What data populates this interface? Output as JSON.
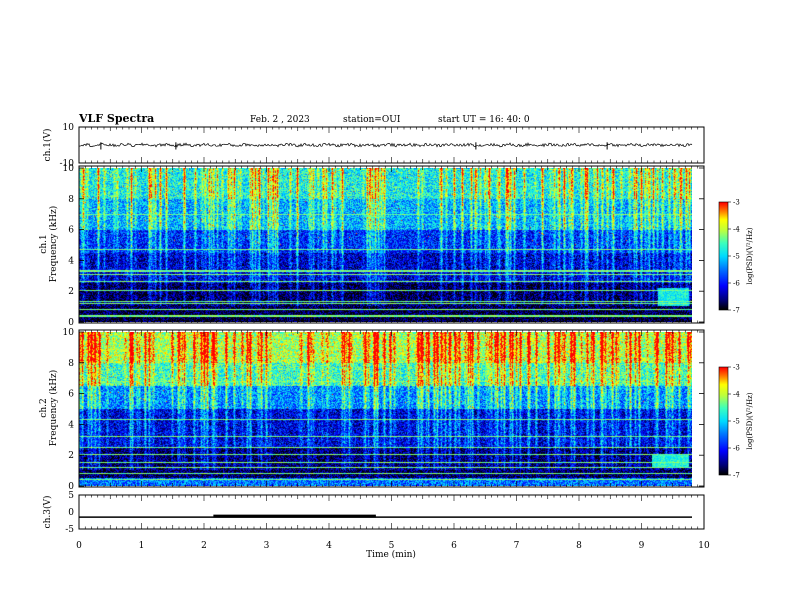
{
  "header": {
    "title": "VLF Spectra",
    "date": "Feb. 2 , 2023",
    "station": "station=OUI",
    "start": "start  UT =   16: 40: 0"
  },
  "colors": {
    "background": "#ffffff",
    "colormap": [
      "#000000",
      "#00007f",
      "#0000ff",
      "#0040ff",
      "#00c0ff",
      "#40ffbf",
      "#bfff40",
      "#ffff00",
      "#ff8000",
      "#ff0000",
      "#ffffff"
    ]
  },
  "chart_data": [
    {
      "type": "line",
      "panel": "ch1-waveform",
      "ylabel": "ch.1(V)",
      "yticks": [
        "10",
        "-10"
      ],
      "ylim": [
        -10,
        10
      ],
      "xlim": [
        0,
        10
      ],
      "series": [
        {
          "values_description_level": 0
        }
      ],
      "spike_times_min": [
        0.35,
        1.55,
        6.35,
        8.45
      ]
    },
    {
      "type": "heatmap",
      "panel": "ch1-spectrogram",
      "ylabel": "ch.1\nFrequency  (kHz)",
      "yticks": [
        "0",
        "2",
        "4",
        "6",
        "8",
        "10"
      ],
      "ylim": [
        0,
        10
      ],
      "xlim": [
        0,
        9.85
      ],
      "colorbar": {
        "label": "log(PSD)(V²/Hz)",
        "ticks": [
          "-3",
          "-4",
          "-5",
          "-6",
          "-7"
        ],
        "range": [
          -7,
          -3
        ]
      },
      "bands": [
        {
          "f": [
            8,
            10
          ],
          "level": -4.8
        },
        {
          "f": [
            6,
            8
          ],
          "level": -5.2
        },
        {
          "f": [
            4.5,
            6
          ],
          "level": -5.9
        },
        {
          "f": [
            2.5,
            4.5
          ],
          "level": -6.3
        },
        {
          "f": [
            0.5,
            2.5
          ],
          "level": -6.8
        },
        {
          "f": [
            0,
            0.5
          ],
          "level": -6.9
        }
      ],
      "lines_khz": [
        0.3,
        0.4,
        0.8,
        1.2,
        1.3,
        2.0,
        2.6,
        3.1,
        3.3,
        4.7,
        7.0
      ],
      "event": {
        "t": [
          9.3,
          9.8
        ],
        "f": [
          1.0,
          2.2
        ],
        "level": -4.8
      }
    },
    {
      "type": "heatmap",
      "panel": "ch2-spectrogram",
      "ylabel": "ch.2\nFrequency  (kHz)",
      "yticks": [
        "0",
        "2",
        "4",
        "6",
        "8",
        "10"
      ],
      "ylim": [
        0,
        10
      ],
      "xlim": [
        0,
        9.85
      ],
      "colorbar": {
        "label": "log(PSD)(V²/Hz)",
        "ticks": [
          "-3",
          "-4",
          "-5",
          "-6",
          "-7"
        ],
        "range": [
          -7,
          -3
        ]
      },
      "bands": [
        {
          "f": [
            8,
            10
          ],
          "level": -4.1
        },
        {
          "f": [
            6.5,
            8
          ],
          "level": -4.6
        },
        {
          "f": [
            5,
            6.5
          ],
          "level": -5.4
        },
        {
          "f": [
            2.5,
            5
          ],
          "level": -6.2
        },
        {
          "f": [
            0.5,
            2.5
          ],
          "level": -6.7
        },
        {
          "f": [
            0,
            0.5
          ],
          "level": -5.5
        }
      ],
      "lines_khz": [
        0.4,
        0.8,
        1.2,
        1.5,
        2.0,
        2.5,
        3.2,
        4.3,
        6.8
      ],
      "event": {
        "t": [
          9.2,
          9.8
        ],
        "f": [
          1.2,
          2.0
        ],
        "level": -4.7
      }
    },
    {
      "type": "line",
      "panel": "ch3-waveform",
      "ylabel": "ch.3(V)",
      "yticks": [
        "5",
        "0",
        "-5"
      ],
      "ylim": [
        -5,
        5
      ],
      "xlim": [
        0,
        10
      ],
      "baseline_v": -1.5,
      "pulse": {
        "t": [
          2.15,
          4.75
        ],
        "v": -1.5
      }
    }
  ],
  "xaxis": {
    "label": "Time  (min)",
    "ticks": [
      "0",
      "1",
      "2",
      "3",
      "4",
      "5",
      "6",
      "7",
      "8",
      "9",
      "10"
    ],
    "range": [
      0,
      10
    ]
  }
}
